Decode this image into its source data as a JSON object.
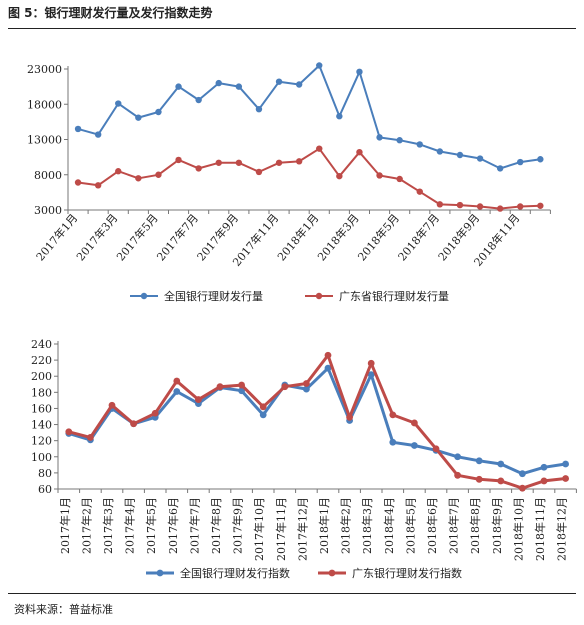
{
  "figure": {
    "title": "图 5：银行理财发行量及发行指数走势",
    "source": "资料来源：普益标准"
  },
  "chart_data": [
    {
      "type": "line",
      "title": "",
      "xlabel": "",
      "ylabel": "",
      "ylim": [
        3000,
        23000
      ],
      "yticks": [
        "23000",
        "18000",
        "13000",
        "8000",
        "3000"
      ],
      "ytick_values": [
        23000,
        18000,
        13000,
        8000,
        3000
      ],
      "categories": [
        "2017年1月",
        "2017年2月",
        "2017年3月",
        "2017年4月",
        "2017年5月",
        "2017年6月",
        "2017年7月",
        "2017年8月",
        "2017年9月",
        "2017年10月",
        "2017年11月",
        "2017年12月",
        "2018年1月",
        "2018年2月",
        "2018年3月",
        "2018年4月",
        "2018年5月",
        "2018年6月",
        "2018年7月",
        "2018年8月",
        "2018年9月",
        "2018年10月",
        "2018年11月",
        "2018年12月"
      ],
      "xtick_labels": [
        "2017年1月",
        "2017年3月",
        "2017年5月",
        "2017年7月",
        "2017年9月",
        "2017年11月",
        "2018年1月",
        "2018年3月",
        "2018年5月",
        "2018年7月",
        "2018年9月",
        "2018年11月"
      ],
      "legend_position": "bottom",
      "grid": false,
      "series": [
        {
          "name": "全国银行理财发行量",
          "color": "#4a7ebb",
          "values": [
            14500,
            13700,
            18100,
            16100,
            16900,
            20500,
            18600,
            21000,
            20500,
            17300,
            21200,
            20800,
            23500,
            16300,
            22600,
            13300,
            12900,
            12300,
            11300,
            10800,
            10300,
            8900,
            9800,
            10200
          ]
        },
        {
          "name": "广东省银行理财发行量",
          "color": "#be4b48",
          "values": [
            6900,
            6500,
            8500,
            7500,
            8000,
            10100,
            8900,
            9700,
            9700,
            8400,
            9700,
            9900,
            11700,
            7800,
            11200,
            7900,
            7400,
            5600,
            3800,
            3700,
            3500,
            3200,
            3500,
            3600
          ]
        }
      ]
    },
    {
      "type": "line",
      "title": "",
      "xlabel": "",
      "ylabel": "",
      "ylim": [
        60,
        240
      ],
      "yticks": [
        "240",
        "220",
        "200",
        "180",
        "160",
        "140",
        "120",
        "100",
        "80",
        "60"
      ],
      "ytick_values": [
        240,
        220,
        200,
        180,
        160,
        140,
        120,
        100,
        80,
        60
      ],
      "categories": [
        "2017年1月",
        "2017年2月",
        "2017年3月",
        "2017年4月",
        "2017年5月",
        "2017年6月",
        "2017年7月",
        "2017年8月",
        "2017年9月",
        "2017年10月",
        "2017年11月",
        "2017年12月",
        "2018年1月",
        "2018年2月",
        "2018年3月",
        "2018年4月",
        "2018年5月",
        "2018年6月",
        "2018年7月",
        "2018年8月",
        "2018年9月",
        "2018年10月",
        "2018年11月",
        "2018年12月"
      ],
      "xtick_labels": [
        "2017年1月",
        "2017年2月",
        "2017年3月",
        "2017年4月",
        "2017年5月",
        "2017年6月",
        "2017年7月",
        "2017年8月",
        "2017年9月",
        "2017年10月",
        "2017年11月",
        "2017年12月",
        "2018年1月",
        "2018年2月",
        "2018年3月",
        "2018年4月",
        "2018年5月",
        "2018年6月",
        "2018年7月",
        "2018年8月",
        "2018年9月",
        "2018年10月",
        "2018年11月",
        "2018年12月"
      ],
      "legend_position": "bottom",
      "grid": false,
      "series": [
        {
          "name": "全国银行理财发行指数",
          "color": "#4a7ebb",
          "values": [
            129,
            121,
            160,
            141,
            149,
            181,
            166,
            186,
            182,
            152,
            189,
            184,
            210,
            145,
            202,
            118,
            114,
            108,
            100,
            95,
            91,
            79,
            87,
            91
          ]
        },
        {
          "name": "广东银行理财发行指数",
          "color": "#be4b48",
          "values": [
            131,
            124,
            164,
            141,
            154,
            194,
            171,
            187,
            189,
            162,
            187,
            191,
            226,
            149,
            216,
            152,
            142,
            110,
            77,
            72,
            70,
            61,
            70,
            73
          ]
        }
      ]
    }
  ]
}
